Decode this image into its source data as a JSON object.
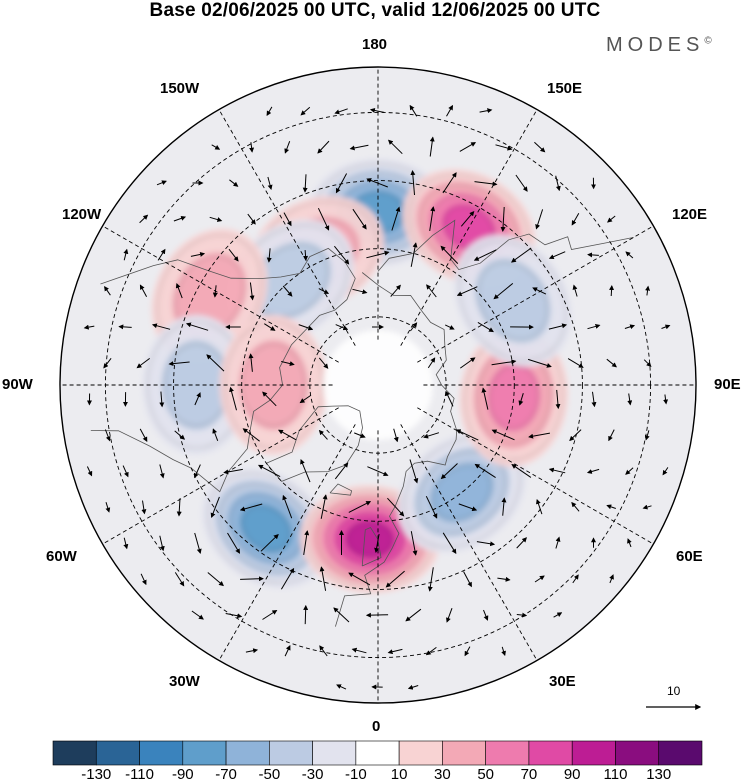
{
  "title": "Base 02/06/2025 00 UTC, valid 12/06/2025 00 UTC",
  "brand": "MODES",
  "brand_mark": "©",
  "lon_labels": {
    "deg180": "180",
    "deg150w": "150W",
    "deg150e": "150E",
    "deg120w": "120W",
    "deg120e": "120E",
    "deg90w": "90W",
    "deg90e": "90E",
    "deg60w": "60W",
    "deg60e": "60E",
    "deg30w": "30W",
    "deg30e": "30E",
    "deg0": "0"
  },
  "reference_vector": {
    "label": "10"
  },
  "colorbar": {
    "colors": [
      "#1e3d5c",
      "#2a6496",
      "#3a83bd",
      "#5f9ecb",
      "#8fb3d9",
      "#bccbe3",
      "#e2e3ee",
      "#ffffff",
      "#f8d3d3",
      "#f3a9b6",
      "#ee7bae",
      "#e04aa5",
      "#bd1d94",
      "#8a0d7f",
      "#5a0a6e"
    ],
    "ticks": [
      "-130",
      "-110",
      "-90",
      "-70",
      "-50",
      "-30",
      "-10",
      "10",
      "30",
      "50",
      "70",
      "90",
      "110",
      "130"
    ]
  },
  "anomaly_centers": [
    {
      "name": "aleutian-low",
      "lon": 180,
      "lat": 52,
      "value": -75
    },
    {
      "name": "bering-high",
      "lon": 150,
      "lat": 50,
      "value": 82
    },
    {
      "name": "ne-pacific-high",
      "lon": -155,
      "lat": 58,
      "value": 35
    },
    {
      "name": "gulf-alaska-low",
      "lon": -140,
      "lat": 60,
      "value": -30
    },
    {
      "name": "west-canada-high",
      "lon": -118,
      "lat": 48,
      "value": 32
    },
    {
      "name": "hudson-low",
      "lon": -90,
      "lat": 50,
      "value": -40
    },
    {
      "name": "canada-high",
      "lon": -90,
      "lat": 67,
      "value": 30
    },
    {
      "name": "n-atlantic-low",
      "lon": -38,
      "lat": 50,
      "value": -75
    },
    {
      "name": "nw-europe-high",
      "lon": -3,
      "lat": 56,
      "value": 95
    },
    {
      "name": "e-europe-low",
      "lon": 38,
      "lat": 60,
      "value": -55
    },
    {
      "name": "w-siberia-high",
      "lon": 85,
      "lat": 60,
      "value": 55
    },
    {
      "name": "ne-asia-low",
      "lon": 122,
      "lat": 55,
      "value": -45
    }
  ]
}
